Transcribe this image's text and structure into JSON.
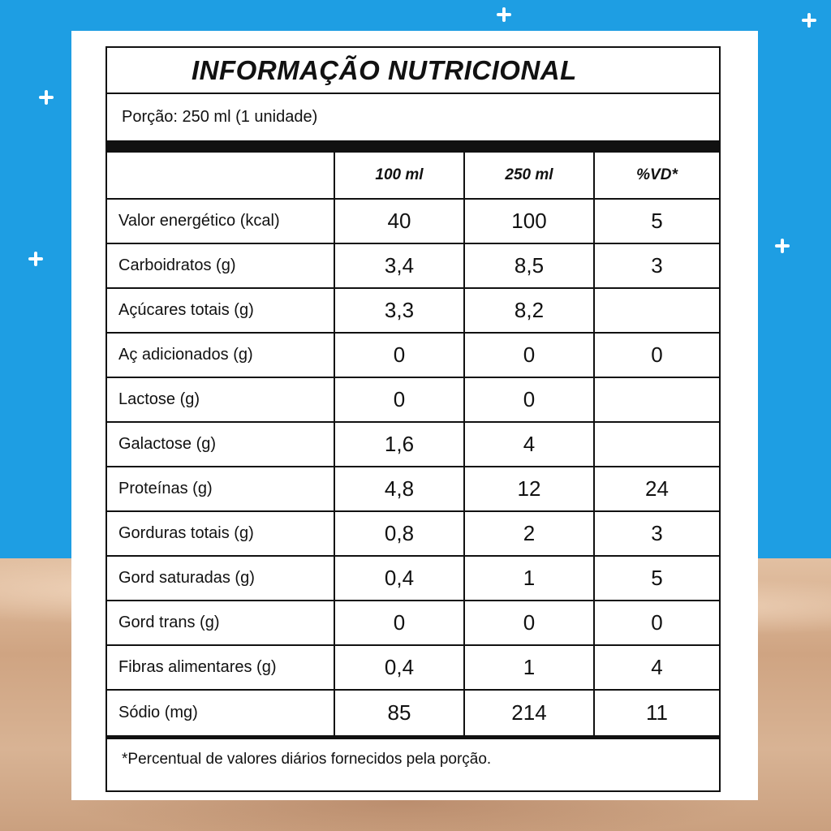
{
  "title": "INFORMAÇÃO NUTRICIONAL",
  "portion": "Porção: 250 ml (1 unidade)",
  "columns": [
    "",
    "100 ml",
    "250 ml",
    "%VD*"
  ],
  "rows": [
    {
      "name": "Valor energético (kcal)",
      "per100": "40",
      "per250": "100",
      "vd": "5"
    },
    {
      "name": "Carboidratos (g)",
      "per100": "3,4",
      "per250": "8,5",
      "vd": "3"
    },
    {
      "name": "Açúcares totais (g)",
      "per100": "3,3",
      "per250": "8,2",
      "vd": ""
    },
    {
      "name": "Aç adicionados (g)",
      "per100": "0",
      "per250": "0",
      "vd": "0"
    },
    {
      "name": "Lactose (g)",
      "per100": "0",
      "per250": "0",
      "vd": ""
    },
    {
      "name": "Galactose (g)",
      "per100": "1,6",
      "per250": "4",
      "vd": ""
    },
    {
      "name": "Proteínas (g)",
      "per100": "4,8",
      "per250": "12",
      "vd": "24"
    },
    {
      "name": "Gorduras totais (g)",
      "per100": "0,8",
      "per250": "2",
      "vd": "3"
    },
    {
      "name": "Gord saturadas (g)",
      "per100": "0,4",
      "per250": "1",
      "vd": "5"
    },
    {
      "name": "Gord trans (g)",
      "per100": "0",
      "per250": "0",
      "vd": "0"
    },
    {
      "name": "Fibras alimentares (g)",
      "per100": "0,4",
      "per250": "1",
      "vd": "4"
    },
    {
      "name": "Sódio (mg)",
      "per100": "85",
      "per250": "214",
      "vd": "11"
    }
  ],
  "footnote": "*Percentual de valores diários fornecidos pela porção.",
  "colors": {
    "background_blue": "#1e9ee3",
    "sand": "#d2a886",
    "ink": "#111111"
  },
  "decorations": [
    "sparkle-icon",
    "sparkle-icon",
    "sparkle-icon",
    "sparkle-icon",
    "sparkle-icon",
    "sparkle-icon"
  ]
}
